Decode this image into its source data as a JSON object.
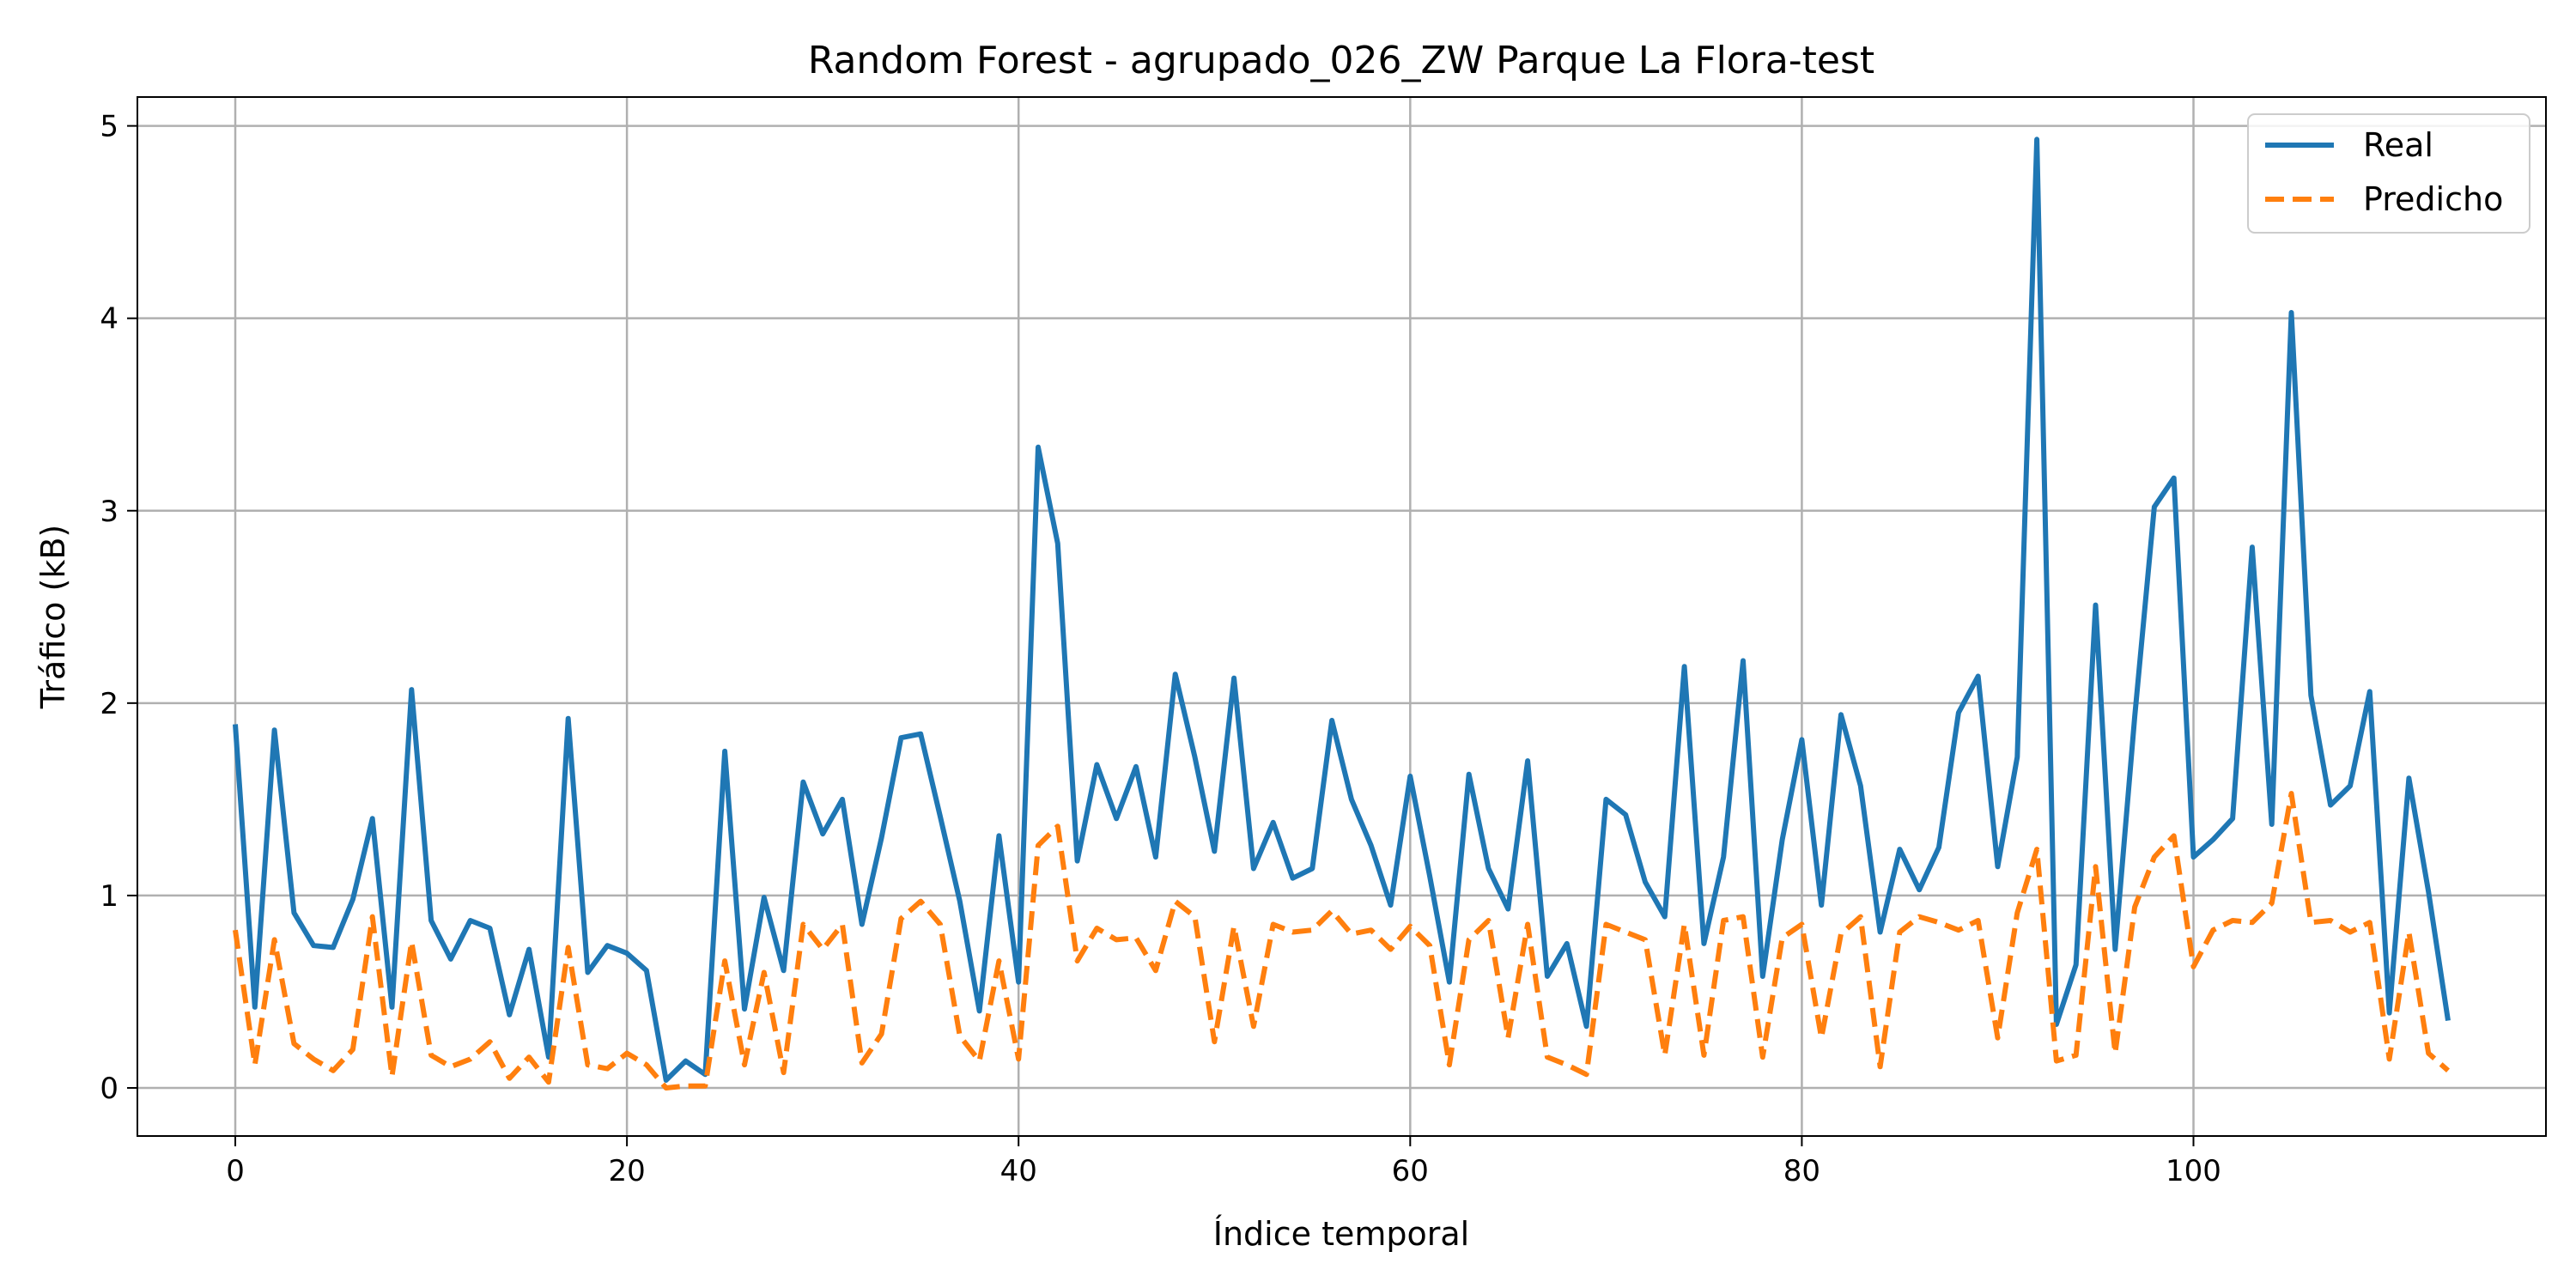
{
  "chart_data": {
    "type": "line",
    "title": "Random Forest - agrupado_026_ZW Parque La Flora-test",
    "xlabel": "Índice temporal",
    "ylabel": "Tráfico (kB)",
    "xlim": [
      -5,
      118
    ],
    "ylim": [
      -0.25,
      5.15
    ],
    "xticks": [
      0,
      20,
      40,
      60,
      80,
      100
    ],
    "yticks": [
      0,
      1,
      2,
      3,
      4,
      5
    ],
    "grid": true,
    "legend_position": "upper-right",
    "series": [
      {
        "name": "Real",
        "color": "#1f77b4",
        "style": "solid",
        "values": [
          1.89,
          0.42,
          1.86,
          0.91,
          0.74,
          0.73,
          0.98,
          1.4,
          0.42,
          2.07,
          0.87,
          0.67,
          0.87,
          0.83,
          0.38,
          0.72,
          0.16,
          1.92,
          0.6,
          0.74,
          0.7,
          0.61,
          0.04,
          0.14,
          0.07,
          1.75,
          0.41,
          0.99,
          0.61,
          1.59,
          1.32,
          1.5,
          0.85,
          1.3,
          1.82,
          1.84,
          1.41,
          0.97,
          0.4,
          1.31,
          0.55,
          3.33,
          2.83,
          1.18,
          1.68,
          1.4,
          1.67,
          1.2,
          2.15,
          1.72,
          1.23,
          2.13,
          1.14,
          1.38,
          1.09,
          1.14,
          1.91,
          1.5,
          1.26,
          0.95,
          1.62,
          1.1,
          0.55,
          1.63,
          1.14,
          0.93,
          1.7,
          0.58,
          0.75,
          0.32,
          1.5,
          1.42,
          1.07,
          0.89,
          2.19,
          0.75,
          1.2,
          2.22,
          0.58,
          1.29,
          1.81,
          0.95,
          1.94,
          1.57,
          0.81,
          1.24,
          1.03,
          1.25,
          1.95,
          2.14,
          1.15,
          1.72,
          4.93,
          0.33,
          0.64,
          2.51,
          0.72,
          1.93,
          3.02,
          3.17,
          1.2,
          1.29,
          1.4,
          2.81,
          1.37,
          4.03,
          2.04,
          1.47,
          1.57,
          2.06,
          0.39,
          1.61,
          1.02,
          0.35
        ]
      },
      {
        "name": "Predicho",
        "color": "#ff7f0e",
        "style": "dashed",
        "values": [
          0.82,
          0.12,
          0.77,
          0.23,
          0.15,
          0.09,
          0.2,
          0.89,
          0.06,
          0.76,
          0.17,
          0.11,
          0.15,
          0.24,
          0.05,
          0.16,
          0.03,
          0.73,
          0.12,
          0.1,
          0.18,
          0.12,
          0.0,
          0.01,
          0.01,
          0.66,
          0.12,
          0.6,
          0.08,
          0.85,
          0.72,
          0.85,
          0.13,
          0.28,
          0.88,
          0.97,
          0.85,
          0.27,
          0.14,
          0.66,
          0.15,
          1.26,
          1.36,
          0.66,
          0.83,
          0.77,
          0.78,
          0.61,
          0.97,
          0.89,
          0.24,
          0.84,
          0.32,
          0.85,
          0.81,
          0.82,
          0.92,
          0.8,
          0.82,
          0.72,
          0.84,
          0.74,
          0.12,
          0.77,
          0.87,
          0.26,
          0.85,
          0.16,
          0.12,
          0.07,
          0.85,
          0.81,
          0.77,
          0.17,
          0.85,
          0.17,
          0.87,
          0.89,
          0.16,
          0.78,
          0.85,
          0.26,
          0.8,
          0.89,
          0.11,
          0.81,
          0.89,
          0.86,
          0.82,
          0.87,
          0.26,
          0.91,
          1.24,
          0.14,
          0.17,
          1.15,
          0.18,
          0.94,
          1.2,
          1.31,
          0.63,
          0.82,
          0.87,
          0.86,
          0.96,
          1.53,
          0.86,
          0.87,
          0.81,
          0.86,
          0.15,
          0.81,
          0.18,
          0.09
        ]
      }
    ]
  }
}
